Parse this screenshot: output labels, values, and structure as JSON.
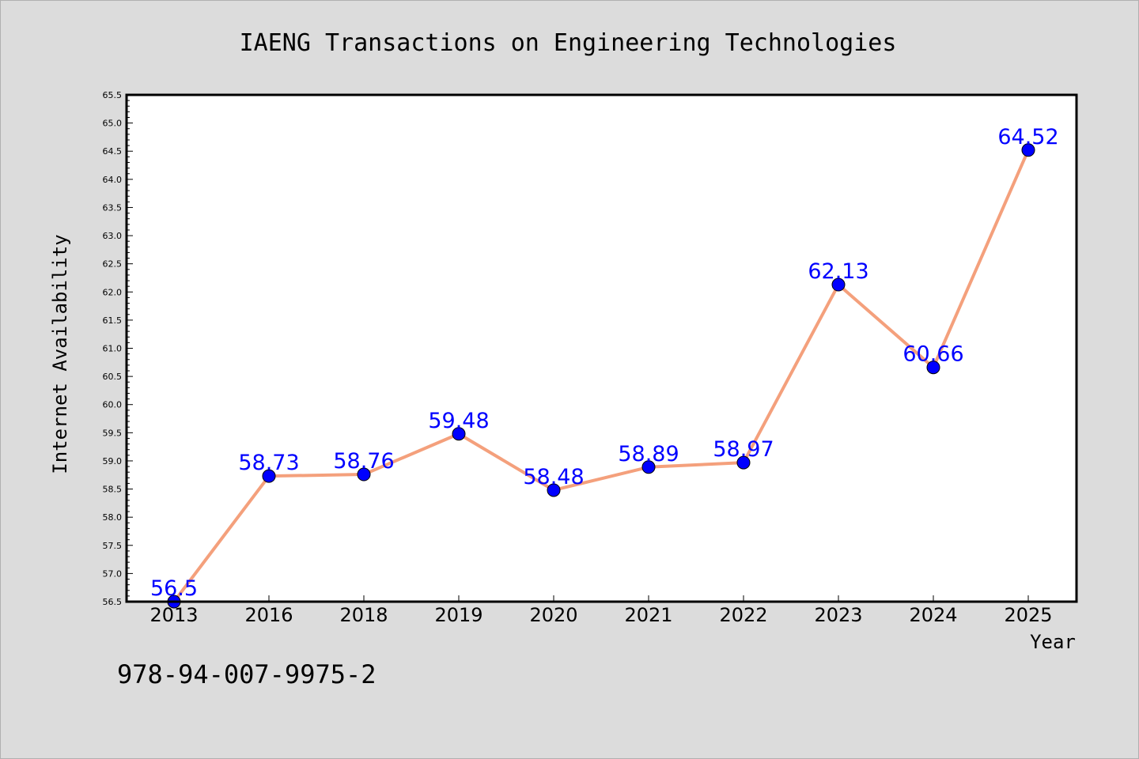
{
  "chart_data": {
    "type": "line",
    "title": "IAENG Transactions on Engineering Technologies",
    "xlabel": "Year",
    "ylabel": "Internet Availability",
    "categories": [
      "2013",
      "2016",
      "2018",
      "2019",
      "2020",
      "2021",
      "2022",
      "2023",
      "2024",
      "2025"
    ],
    "values": [
      56.5,
      58.73,
      58.76,
      59.48,
      58.48,
      58.89,
      58.97,
      62.13,
      60.66,
      64.52
    ],
    "data_labels": [
      "56.5",
      "58.73",
      "58.76",
      "59.48",
      "58.48",
      "58.89",
      "58.97",
      "62.13",
      "60.66",
      "64.52"
    ],
    "ylim": [
      56.5,
      65.5
    ],
    "ytick_step": 0.5,
    "ytick_labels": [
      "56.5",
      "57.0",
      "57.5",
      "58.0",
      "58.5",
      "59.0",
      "59.5",
      "60.0",
      "60.5",
      "61.0",
      "61.5",
      "62.0",
      "62.5",
      "63.0",
      "63.5",
      "64.0",
      "64.5",
      "65.0",
      "65.5"
    ],
    "grid": false,
    "line_color": "#f4a07c",
    "marker_color": "#0000ff",
    "label_color": "#0000ff",
    "background_color": "#dcdcdc",
    "plot_background": "#ffffff"
  },
  "footnote": "978-94-007-9975-2"
}
